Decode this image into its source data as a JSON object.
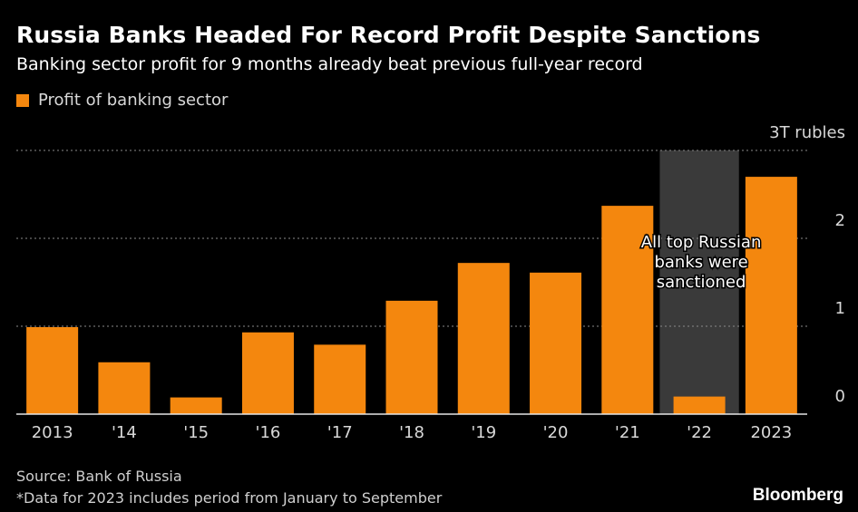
{
  "header": {
    "title": "Russia Banks Headed For Record Profit Despite Sanctions",
    "subtitle": "Banking sector profit for 9 months already beat previous full-year record"
  },
  "legend": {
    "label": "Profit of banking sector",
    "color": "#f4870e"
  },
  "chart_data": {
    "type": "bar",
    "categories": [
      "2013",
      "'14",
      "'15",
      "'16",
      "'17",
      "'18",
      "'19",
      "'20",
      "'21",
      "'22",
      "2023"
    ],
    "series": [
      {
        "name": "Profit of banking sector",
        "values": [
          0.99,
          0.59,
          0.19,
          0.93,
          0.79,
          1.29,
          1.72,
          1.61,
          2.37,
          0.2,
          2.7
        ]
      }
    ],
    "ylim": [
      0,
      3
    ],
    "y_ticks": [
      0,
      1,
      2,
      3
    ],
    "y_tick_labels": [
      "0",
      "1",
      "2",
      "3T rubles"
    ],
    "grid": true,
    "bar_color": "#f4870e",
    "shaded_region": {
      "category": "'22",
      "color": "#3a3a3a"
    },
    "annotation": {
      "lines": [
        "All top Russian",
        "banks were",
        "sanctioned"
      ]
    }
  },
  "footer": {
    "source": "Source: Bank of Russia",
    "note": "*Data for 2023 includes period from January to September",
    "brand": "Bloomberg"
  }
}
